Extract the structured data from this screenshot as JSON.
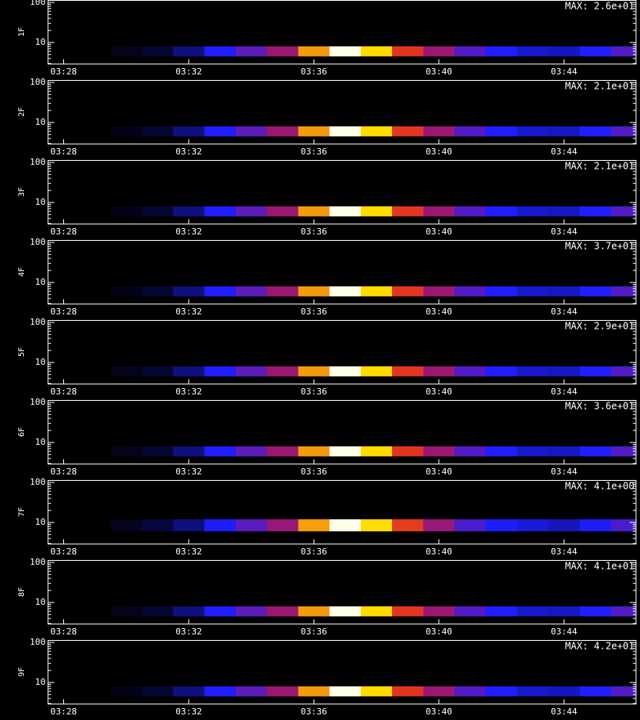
{
  "chart_data": [
    {
      "type": "heatmap",
      "ylabel": "1F",
      "max": {
        "value": 26,
        "label": "MAX: 2.6e+01"
      },
      "ylog": true,
      "ylim": [
        2.9,
        115
      ],
      "yticks": [
        10,
        100
      ],
      "yminorticks": [
        3,
        4,
        5,
        6,
        7,
        8,
        9,
        20,
        30,
        40,
        50,
        60,
        70,
        80,
        90
      ],
      "xlim": [
        207.5,
        226.3
      ],
      "xticks": [
        {
          "value": 208,
          "label": "03:28"
        },
        {
          "value": 212,
          "label": "03:32"
        },
        {
          "value": 216,
          "label": "03:36"
        },
        {
          "value": 220,
          "label": "03:40"
        },
        {
          "value": 224,
          "label": "03:44"
        }
      ],
      "x": [
        210,
        211,
        212,
        213,
        214,
        215,
        216,
        217,
        218,
        219,
        220,
        221,
        222,
        223,
        224,
        225,
        226
      ],
      "ybins": [
        4.5,
        8
      ],
      "values": [
        0.5,
        1,
        2.6,
        5.2,
        7.8,
        10.4,
        18.2,
        26,
        20.8,
        14.3,
        10.4,
        7.3,
        5.2,
        4.2,
        3.9,
        5.2,
        7.3
      ]
    },
    {
      "type": "heatmap",
      "ylabel": "2F",
      "max": {
        "value": 21,
        "label": "MAX: 2.1e+01"
      },
      "ylog": true,
      "ylim": [
        2.9,
        115
      ],
      "yticks": [
        10,
        100
      ],
      "yminorticks": [
        3,
        4,
        5,
        6,
        7,
        8,
        9,
        20,
        30,
        40,
        50,
        60,
        70,
        80,
        90
      ],
      "xlim": [
        207.5,
        226.3
      ],
      "xticks": [
        {
          "value": 208,
          "label": "03:28"
        },
        {
          "value": 212,
          "label": "03:32"
        },
        {
          "value": 216,
          "label": "03:36"
        },
        {
          "value": 220,
          "label": "03:40"
        },
        {
          "value": 224,
          "label": "03:44"
        }
      ],
      "x": [
        210,
        211,
        212,
        213,
        214,
        215,
        216,
        217,
        218,
        219,
        220,
        221,
        222,
        223,
        224,
        225,
        226
      ],
      "ybins": [
        4.5,
        8
      ],
      "values": [
        0.4,
        0.8,
        2.1,
        4.2,
        6.3,
        8.4,
        14.7,
        21,
        16.8,
        11.6,
        8.4,
        5.9,
        4.2,
        3.4,
        3.2,
        4.2,
        5.9
      ]
    },
    {
      "type": "heatmap",
      "ylabel": "3F",
      "max": {
        "value": 21,
        "label": "MAX: 2.1e+01"
      },
      "ylog": true,
      "ylim": [
        2.9,
        115
      ],
      "yticks": [
        10,
        100
      ],
      "yminorticks": [
        3,
        4,
        5,
        6,
        7,
        8,
        9,
        20,
        30,
        40,
        50,
        60,
        70,
        80,
        90
      ],
      "xlim": [
        207.5,
        226.3
      ],
      "xticks": [
        {
          "value": 208,
          "label": "03:28"
        },
        {
          "value": 212,
          "label": "03:32"
        },
        {
          "value": 216,
          "label": "03:36"
        },
        {
          "value": 220,
          "label": "03:40"
        },
        {
          "value": 224,
          "label": "03:44"
        }
      ],
      "x": [
        210,
        211,
        212,
        213,
        214,
        215,
        216,
        217,
        218,
        219,
        220,
        221,
        222,
        223,
        224,
        225,
        226
      ],
      "ybins": [
        4.5,
        8
      ],
      "values": [
        0.4,
        0.8,
        2.1,
        4.2,
        6.3,
        8.4,
        14.7,
        21,
        16.8,
        11.6,
        8.4,
        5.9,
        4.2,
        3.4,
        3.2,
        4.2,
        5.9
      ]
    },
    {
      "type": "heatmap",
      "ylabel": "4F",
      "max": {
        "value": 37,
        "label": "MAX: 3.7e+01"
      },
      "ylog": true,
      "ylim": [
        2.9,
        115
      ],
      "yticks": [
        10,
        100
      ],
      "yminorticks": [
        3,
        4,
        5,
        6,
        7,
        8,
        9,
        20,
        30,
        40,
        50,
        60,
        70,
        80,
        90
      ],
      "xlim": [
        207.5,
        226.3
      ],
      "xticks": [
        {
          "value": 208,
          "label": "03:28"
        },
        {
          "value": 212,
          "label": "03:32"
        },
        {
          "value": 216,
          "label": "03:36"
        },
        {
          "value": 220,
          "label": "03:40"
        },
        {
          "value": 224,
          "label": "03:44"
        }
      ],
      "x": [
        210,
        211,
        212,
        213,
        214,
        215,
        216,
        217,
        218,
        219,
        220,
        221,
        222,
        223,
        224,
        225,
        226
      ],
      "ybins": [
        4.5,
        8
      ],
      "values": [
        0.7,
        1.5,
        3.7,
        7.4,
        11.1,
        14.8,
        25.9,
        37,
        29.6,
        20.4,
        14.8,
        10.4,
        7.4,
        5.9,
        5.6,
        7.4,
        10.4
      ]
    },
    {
      "type": "heatmap",
      "ylabel": "5F",
      "max": {
        "value": 29,
        "label": "MAX: 2.9e+01"
      },
      "ylog": true,
      "ylim": [
        2.9,
        115
      ],
      "yticks": [
        10,
        100
      ],
      "yminorticks": [
        3,
        4,
        5,
        6,
        7,
        8,
        9,
        20,
        30,
        40,
        50,
        60,
        70,
        80,
        90
      ],
      "xlim": [
        207.5,
        226.3
      ],
      "xticks": [
        {
          "value": 208,
          "label": "03:28"
        },
        {
          "value": 212,
          "label": "03:32"
        },
        {
          "value": 216,
          "label": "03:36"
        },
        {
          "value": 220,
          "label": "03:40"
        },
        {
          "value": 224,
          "label": "03:44"
        }
      ],
      "x": [
        210,
        211,
        212,
        213,
        214,
        215,
        216,
        217,
        218,
        219,
        220,
        221,
        222,
        223,
        224,
        225,
        226
      ],
      "ybins": [
        4.5,
        8
      ],
      "values": [
        0.6,
        1.2,
        2.9,
        5.8,
        8.7,
        11.6,
        20.3,
        29,
        23.2,
        16,
        11.6,
        8.1,
        5.8,
        4.6,
        4.4,
        5.8,
        8.1
      ]
    },
    {
      "type": "heatmap",
      "ylabel": "6F",
      "max": {
        "value": 36,
        "label": "MAX: 3.6e+01"
      },
      "ylog": true,
      "ylim": [
        2.9,
        115
      ],
      "yticks": [
        10,
        100
      ],
      "yminorticks": [
        3,
        4,
        5,
        6,
        7,
        8,
        9,
        20,
        30,
        40,
        50,
        60,
        70,
        80,
        90
      ],
      "xlim": [
        207.5,
        226.3
      ],
      "xticks": [
        {
          "value": 208,
          "label": "03:28"
        },
        {
          "value": 212,
          "label": "03:32"
        },
        {
          "value": 216,
          "label": "03:36"
        },
        {
          "value": 220,
          "label": "03:40"
        },
        {
          "value": 224,
          "label": "03:44"
        }
      ],
      "x": [
        210,
        211,
        212,
        213,
        214,
        215,
        216,
        217,
        218,
        219,
        220,
        221,
        222,
        223,
        224,
        225,
        226
      ],
      "ybins": [
        4.5,
        8
      ],
      "values": [
        0.7,
        1.4,
        3.6,
        7.2,
        10.8,
        14.4,
        25.2,
        36,
        28.8,
        19.8,
        14.4,
        10.1,
        7.2,
        5.8,
        5.4,
        7.2,
        10.1
      ]
    },
    {
      "type": "heatmap",
      "ylabel": "7F",
      "max": {
        "value": 4.1,
        "label": "MAX: 4.1e+00"
      },
      "ylog": true,
      "ylim": [
        2.9,
        115
      ],
      "yticks": [
        10,
        100
      ],
      "yminorticks": [
        3,
        4,
        5,
        6,
        7,
        8,
        9,
        20,
        30,
        40,
        50,
        60,
        70,
        80,
        90
      ],
      "xlim": [
        207.5,
        226.3
      ],
      "xticks": [
        {
          "value": 208,
          "label": "03:28"
        },
        {
          "value": 212,
          "label": "03:32"
        },
        {
          "value": 216,
          "label": "03:36"
        },
        {
          "value": 220,
          "label": "03:40"
        },
        {
          "value": 224,
          "label": "03:44"
        }
      ],
      "x": [
        210,
        211,
        212,
        213,
        214,
        215,
        216,
        217,
        218,
        219,
        220,
        221,
        222,
        223,
        224,
        225,
        226
      ],
      "ybins": [
        6,
        12
      ],
      "values": [
        0.1,
        0.2,
        0.4,
        0.8,
        1.2,
        1.6,
        2.9,
        4.1,
        3.3,
        2.3,
        1.6,
        1.1,
        0.8,
        0.7,
        0.6,
        0.8,
        1.1
      ]
    },
    {
      "type": "heatmap",
      "ylabel": "8F",
      "max": {
        "value": 41,
        "label": "MAX: 4.1e+01"
      },
      "ylog": true,
      "ylim": [
        2.9,
        115
      ],
      "yticks": [
        10,
        100
      ],
      "yminorticks": [
        3,
        4,
        5,
        6,
        7,
        8,
        9,
        20,
        30,
        40,
        50,
        60,
        70,
        80,
        90
      ],
      "xlim": [
        207.5,
        226.3
      ],
      "xticks": [
        {
          "value": 208,
          "label": "03:28"
        },
        {
          "value": 212,
          "label": "03:32"
        },
        {
          "value": 216,
          "label": "03:36"
        },
        {
          "value": 220,
          "label": "03:40"
        },
        {
          "value": 224,
          "label": "03:44"
        }
      ],
      "x": [
        210,
        211,
        212,
        213,
        214,
        215,
        216,
        217,
        218,
        219,
        220,
        221,
        222,
        223,
        224,
        225,
        226
      ],
      "ybins": [
        4.5,
        8
      ],
      "values": [
        0.8,
        1.6,
        4.1,
        8.2,
        12.3,
        16.4,
        28.7,
        41,
        32.8,
        22.6,
        16.4,
        11.5,
        8.2,
        6.6,
        6.2,
        8.2,
        11.5
      ]
    },
    {
      "type": "heatmap",
      "ylabel": "9F",
      "max": {
        "value": 42,
        "label": "MAX: 4.2e+01"
      },
      "ylog": true,
      "ylim": [
        2.9,
        115
      ],
      "yticks": [
        10,
        100
      ],
      "yminorticks": [
        3,
        4,
        5,
        6,
        7,
        8,
        9,
        20,
        30,
        40,
        50,
        60,
        70,
        80,
        90
      ],
      "xlim": [
        207.5,
        226.3
      ],
      "xticks": [
        {
          "value": 208,
          "label": "03:28"
        },
        {
          "value": 212,
          "label": "03:32"
        },
        {
          "value": 216,
          "label": "03:36"
        },
        {
          "value": 220,
          "label": "03:40"
        },
        {
          "value": 224,
          "label": "03:44"
        }
      ],
      "x": [
        210,
        211,
        212,
        213,
        214,
        215,
        216,
        217,
        218,
        219,
        220,
        221,
        222,
        223,
        224,
        225,
        226
      ],
      "ybins": [
        4.5,
        8
      ],
      "values": [
        0.8,
        1.7,
        4.2,
        8.4,
        12.6,
        16.8,
        29.4,
        42,
        33.6,
        23.1,
        16.8,
        11.8,
        8.4,
        6.7,
        6.3,
        8.4,
        11.8
      ]
    }
  ]
}
